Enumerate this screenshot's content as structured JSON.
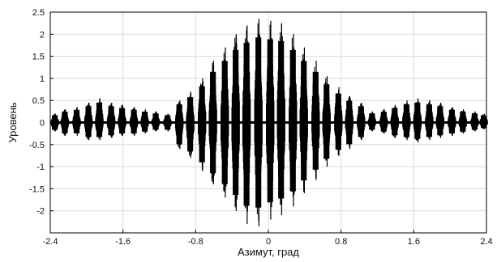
{
  "chart_data": {
    "type": "line",
    "title": "",
    "xlabel": "Азимут, град",
    "ylabel": "Уровень",
    "xlim": [
      -2.4,
      2.4
    ],
    "ylim": [
      -2.5,
      2.5
    ],
    "x_ticks": [
      -2.4,
      -1.6,
      -0.8,
      0,
      0.8,
      1.6,
      2.4
    ],
    "x_tick_labels": [
      "-2.4",
      "-1.6",
      "-0.8",
      "0",
      "0.8",
      "1.6",
      "2.4"
    ],
    "y_ticks": [
      2.5,
      2,
      1.5,
      1,
      0.5,
      0,
      -0.5,
      -1,
      -1.5,
      -2
    ],
    "y_tick_labels": [
      "2.5",
      "2",
      "1.5",
      "1",
      "0.5",
      "0",
      "-0.5",
      "-1",
      "-1.5",
      "-2"
    ],
    "grid": true,
    "line_color": "#000000",
    "series": [
      {
        "x": [
          -2.35,
          -2.24,
          -2.11,
          -1.98,
          -1.86,
          -1.73,
          -1.61,
          -1.48,
          -1.36,
          -1.24,
          -1.11,
          -0.98,
          -0.86,
          -0.73,
          -0.61,
          -0.48,
          -0.36,
          -0.24,
          -0.11,
          0.02,
          0.14,
          0.27,
          0.39,
          0.52,
          0.64,
          0.77,
          0.89,
          1.02,
          1.14,
          1.27,
          1.39,
          1.52,
          1.64,
          1.77,
          1.89,
          2.02,
          2.14,
          2.27,
          2.37
        ],
        "y_max": [
          0.2,
          0.3,
          0.35,
          0.45,
          0.55,
          0.45,
          0.4,
          0.35,
          0.3,
          0.25,
          0.2,
          0.5,
          0.7,
          1.0,
          1.4,
          1.7,
          2.0,
          2.2,
          2.35,
          2.3,
          2.25,
          2.0,
          1.7,
          1.4,
          1.05,
          0.8,
          0.6,
          0.45,
          0.25,
          0.3,
          0.4,
          0.5,
          0.55,
          0.5,
          0.45,
          0.35,
          0.3,
          0.25,
          0.2
        ],
        "y_min": [
          -0.2,
          -0.3,
          -0.3,
          -0.4,
          -0.4,
          -0.35,
          -0.3,
          -0.3,
          -0.25,
          -0.2,
          -0.2,
          -0.6,
          -0.8,
          -1.1,
          -1.4,
          -1.7,
          -2.0,
          -2.3,
          -2.35,
          -2.2,
          -2.1,
          -1.9,
          -1.6,
          -1.3,
          -1.0,
          -0.75,
          -0.6,
          -0.4,
          -0.2,
          -0.25,
          -0.35,
          -0.4,
          -0.45,
          -0.4,
          -0.35,
          -0.3,
          -0.25,
          -0.2,
          -0.15
        ]
      }
    ]
  }
}
